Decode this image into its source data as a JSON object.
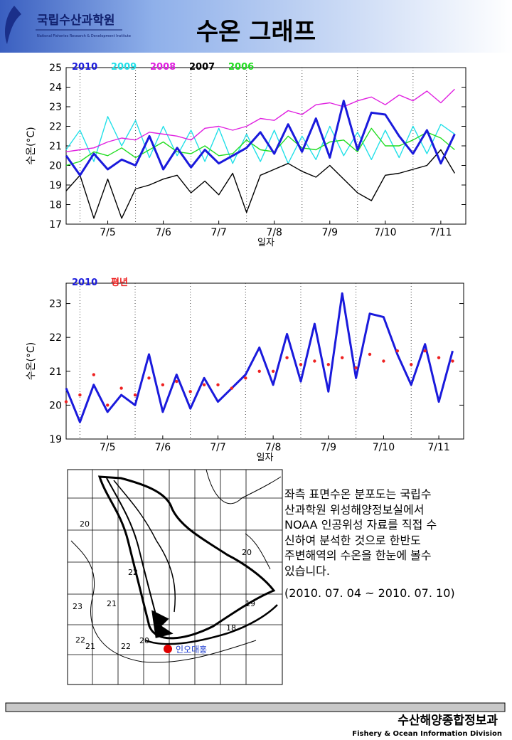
{
  "header": {
    "logo_ko": "국립수산과학원",
    "logo_en": "National Fisheries Research & Development Institute",
    "title": "수온 그래프"
  },
  "chart_data": [
    {
      "type": "line",
      "xlabel": "일자",
      "ylabel": "수온(°C)",
      "x": [
        4.75,
        5,
        5.25,
        5.5,
        5.75,
        6,
        6.25,
        6.5,
        6.75,
        7,
        7.25,
        7.5,
        7.75,
        8,
        8.25,
        8.5,
        8.75,
        9,
        9.25,
        9.5,
        9.75,
        10,
        10.25,
        10.5,
        10.75,
        11,
        11.25,
        11.5,
        11.75
      ],
      "xlim": [
        4.75,
        11.95
      ],
      "xticks": [
        {
          "value": 5.5,
          "label": "7/5"
        },
        {
          "value": 6.5,
          "label": "7/6"
        },
        {
          "value": 7.5,
          "label": "7/7"
        },
        {
          "value": 8.5,
          "label": "7/8"
        },
        {
          "value": 9.5,
          "label": "7/9"
        },
        {
          "value": 10.5,
          "label": "7/10"
        },
        {
          "value": 11.5,
          "label": "7/11"
        }
      ],
      "xgrid": [
        5,
        6,
        7,
        8,
        9,
        10,
        11
      ],
      "ylim": [
        17,
        25
      ],
      "yticks": [
        17,
        18,
        19,
        20,
        21,
        22,
        23,
        24,
        25
      ],
      "series": [
        {
          "name": "2010",
          "color": "#1a1adc",
          "style": "line",
          "values": [
            20.5,
            19.5,
            20.6,
            19.8,
            20.3,
            20.0,
            21.5,
            19.8,
            20.9,
            19.9,
            20.8,
            20.1,
            20.5,
            20.9,
            21.7,
            20.6,
            22.1,
            20.7,
            22.4,
            20.4,
            23.3,
            20.8,
            22.7,
            22.6,
            21.5,
            20.6,
            21.8,
            20.1,
            21.6
          ]
        },
        {
          "name": "2009",
          "color": "#22e0e8",
          "style": "line",
          "values": [
            20.8,
            21.8,
            20.2,
            22.5,
            21.0,
            22.3,
            20.4,
            22.0,
            20.5,
            21.8,
            20.2,
            21.9,
            20.1,
            21.6,
            20.2,
            21.8,
            20.1,
            21.5,
            20.3,
            22.0,
            20.5,
            21.7,
            20.3,
            21.8,
            20.4,
            22.0,
            20.6,
            22.1,
            21.6
          ]
        },
        {
          "name": "2008",
          "color": "#e020e0",
          "style": "line",
          "values": [
            20.7,
            20.8,
            20.9,
            21.2,
            21.4,
            21.3,
            21.7,
            21.6,
            21.5,
            21.3,
            21.9,
            22.0,
            21.8,
            22.0,
            22.4,
            22.3,
            22.8,
            22.6,
            23.1,
            23.2,
            23.0,
            23.3,
            23.5,
            23.1,
            23.6,
            23.3,
            23.8,
            23.2,
            23.9
          ]
        },
        {
          "name": "2007",
          "color": "#000000",
          "style": "line",
          "values": [
            18.7,
            19.5,
            17.3,
            19.3,
            17.3,
            18.8,
            19.0,
            19.3,
            19.5,
            18.6,
            19.2,
            18.5,
            19.6,
            17.6,
            19.5,
            19.8,
            20.1,
            19.7,
            19.4,
            20.0,
            19.3,
            18.6,
            18.2,
            19.5,
            19.6,
            19.8,
            20.0,
            20.8,
            19.6
          ]
        },
        {
          "name": "2006",
          "color": "#22dd22",
          "style": "line",
          "values": [
            20.0,
            20.2,
            20.7,
            20.5,
            20.9,
            20.4,
            20.8,
            21.2,
            20.7,
            20.6,
            21.0,
            20.5,
            20.6,
            21.3,
            20.8,
            20.7,
            21.5,
            20.9,
            20.8,
            21.2,
            21.3,
            20.7,
            21.9,
            21.0,
            21.0,
            21.3,
            21.7,
            21.4,
            20.8
          ]
        }
      ]
    },
    {
      "type": "line",
      "xlabel": "일자",
      "ylabel": "수온(°C)",
      "x": [
        4.75,
        5,
        5.25,
        5.5,
        5.75,
        6,
        6.25,
        6.5,
        6.75,
        7,
        7.25,
        7.5,
        7.75,
        8,
        8.25,
        8.5,
        8.75,
        9,
        9.25,
        9.5,
        9.75,
        10,
        10.25,
        10.5,
        10.75,
        11,
        11.25,
        11.5,
        11.75
      ],
      "xlim": [
        4.75,
        11.95
      ],
      "xticks": [
        {
          "value": 5.5,
          "label": "7/5"
        },
        {
          "value": 6.5,
          "label": "7/6"
        },
        {
          "value": 7.5,
          "label": "7/7"
        },
        {
          "value": 8.5,
          "label": "7/8"
        },
        {
          "value": 9.5,
          "label": "7/9"
        },
        {
          "value": 10.5,
          "label": "7/10"
        },
        {
          "value": 11.5,
          "label": "7/11"
        }
      ],
      "xgrid": [
        5,
        6,
        7,
        8,
        9,
        10,
        11
      ],
      "ylim": [
        19,
        23.6
      ],
      "yticks": [
        19,
        20,
        21,
        22,
        23
      ],
      "series": [
        {
          "name": "2010",
          "color": "#1a1adc",
          "style": "line",
          "values": [
            20.5,
            19.5,
            20.6,
            19.8,
            20.3,
            20.0,
            21.5,
            19.8,
            20.9,
            19.9,
            20.8,
            20.1,
            20.5,
            20.9,
            21.7,
            20.6,
            22.1,
            20.7,
            22.4,
            20.4,
            23.3,
            20.8,
            22.7,
            22.6,
            21.5,
            20.6,
            21.8,
            20.1,
            21.6
          ]
        },
        {
          "name": "평년",
          "color": "#ee2222",
          "style": "dots",
          "values": [
            20.1,
            20.3,
            20.9,
            20.0,
            20.5,
            20.3,
            20.8,
            20.6,
            20.7,
            20.4,
            20.6,
            20.6,
            20.5,
            20.8,
            21.0,
            21.0,
            21.4,
            21.2,
            21.3,
            21.2,
            21.4,
            21.1,
            21.5,
            21.3,
            21.6,
            21.2,
            21.6,
            21.4,
            21.3
          ]
        }
      ]
    }
  ],
  "map": {
    "labels": [
      "20",
      "22",
      "21",
      "23",
      "22",
      "22",
      "21",
      "20",
      "20",
      "19",
      "18"
    ],
    "station": "인오대홍"
  },
  "description": {
    "lines": [
      "좌측 표면수온 분포도는 국립수",
      "산과학원 위성해양정보실에서",
      "NOAA 인공위성 자료를 직접 수",
      "신하여 분석한 것으로  한반도",
      "주변해역의 수온을 한눈에 볼수",
      "있습니다."
    ],
    "period": "(2010. 07. 04 ~ 2010. 07. 10)"
  },
  "footer": {
    "ko": "수산해양종합정보과",
    "en": "Fishery & Ocean Information Division"
  }
}
